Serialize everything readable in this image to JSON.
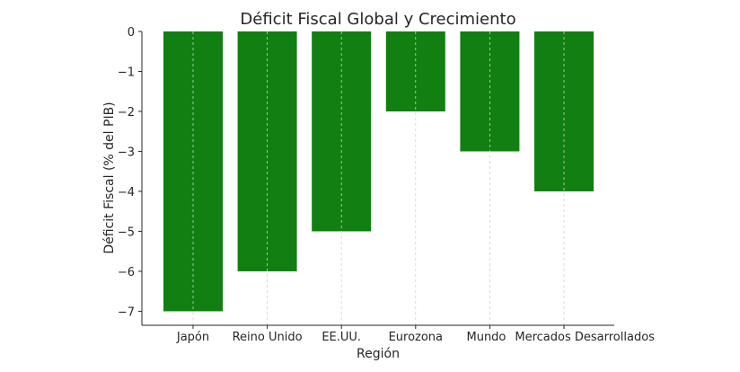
{
  "chart_data": {
    "type": "bar",
    "title": "Déficit Fiscal Global y Crecimiento",
    "xlabel": "Región",
    "ylabel": "Déficit Fiscal (% del PIB)",
    "categories": [
      "Japón",
      "Reino Unido",
      "EE.UU.",
      "Eurozona",
      "Mundo",
      "Mercados Desarrollados"
    ],
    "values": [
      -7,
      -6,
      -5,
      -2,
      -3,
      -4
    ],
    "ylim": [
      -7.35,
      0
    ],
    "yticks": [
      0,
      -1,
      -2,
      -3,
      -4,
      -5,
      -6,
      -7
    ],
    "ytick_labels": [
      "0",
      "−1",
      "−2",
      "−3",
      "−4",
      "−5",
      "−6",
      "−7"
    ],
    "grid": "vertical dashed at categories",
    "bar_color": "#117f11"
  }
}
